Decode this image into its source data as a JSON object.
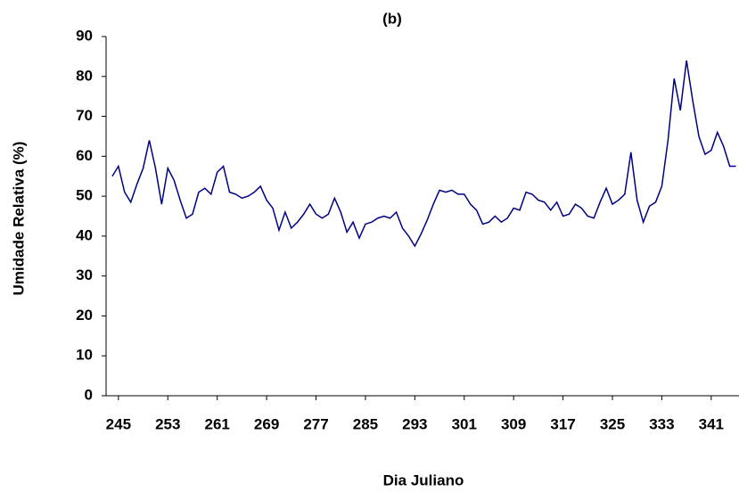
{
  "chart_data": {
    "type": "line",
    "title": "(b)",
    "x_label": "Dia Juliano",
    "y_label": "Umidade Relativa (%)",
    "x": [
      244,
      245,
      246,
      247,
      248,
      249,
      250,
      251,
      252,
      253,
      254,
      255,
      256,
      257,
      258,
      259,
      260,
      261,
      262,
      263,
      264,
      265,
      266,
      267,
      268,
      269,
      270,
      271,
      272,
      273,
      274,
      275,
      276,
      277,
      278,
      279,
      280,
      281,
      282,
      283,
      284,
      285,
      286,
      287,
      288,
      289,
      290,
      291,
      292,
      293,
      294,
      295,
      296,
      297,
      298,
      299,
      300,
      301,
      302,
      303,
      304,
      305,
      306,
      307,
      308,
      309,
      310,
      311,
      312,
      313,
      314,
      315,
      316,
      317,
      318,
      319,
      320,
      321,
      322,
      323,
      324,
      325,
      326,
      327,
      328,
      329,
      330,
      331,
      332,
      333,
      334,
      335,
      336,
      337,
      338,
      339,
      340,
      341,
      342,
      343,
      344,
      345
    ],
    "series": [
      {
        "name": "Umidade Relativa",
        "color": "#000080",
        "values": [
          55,
          57.5,
          51,
          48.5,
          53,
          57,
          64,
          57,
          48,
          57,
          54,
          49,
          44.5,
          45.5,
          51,
          52,
          50.5,
          56,
          57.5,
          51,
          50.5,
          49.5,
          50,
          51,
          52.5,
          49,
          47,
          41.5,
          46,
          42,
          43.5,
          45.5,
          48,
          45.5,
          44.5,
          45.5,
          49.5,
          46,
          41,
          43.5,
          39.5,
          43,
          43.5,
          44.5,
          45,
          44.5,
          46,
          42,
          40,
          37.5,
          40.5,
          44,
          48,
          51.5,
          51,
          51.5,
          50.5,
          50.5,
          48,
          46.5,
          43,
          43.5,
          45,
          43.5,
          44.5,
          47,
          46.5,
          51,
          50.5,
          49,
          48.5,
          46.5,
          48.5,
          45,
          45.5,
          48,
          47,
          45,
          44.5,
          48.5,
          52,
          48,
          49,
          50.5,
          61,
          49,
          43.5,
          47.5,
          48.5,
          52.5,
          64,
          79.5,
          71.5,
          84,
          74,
          65,
          60.5,
          61.5,
          66,
          62.5,
          57.5,
          57.5
        ]
      }
    ],
    "xlim": [
      243,
      345.5
    ],
    "ylim": [
      0,
      90
    ],
    "xticks": [
      245,
      253,
      261,
      269,
      277,
      285,
      293,
      301,
      309,
      317,
      325,
      333,
      341
    ],
    "yticks": [
      0,
      10,
      20,
      30,
      40,
      50,
      60,
      70,
      80,
      90
    ]
  }
}
